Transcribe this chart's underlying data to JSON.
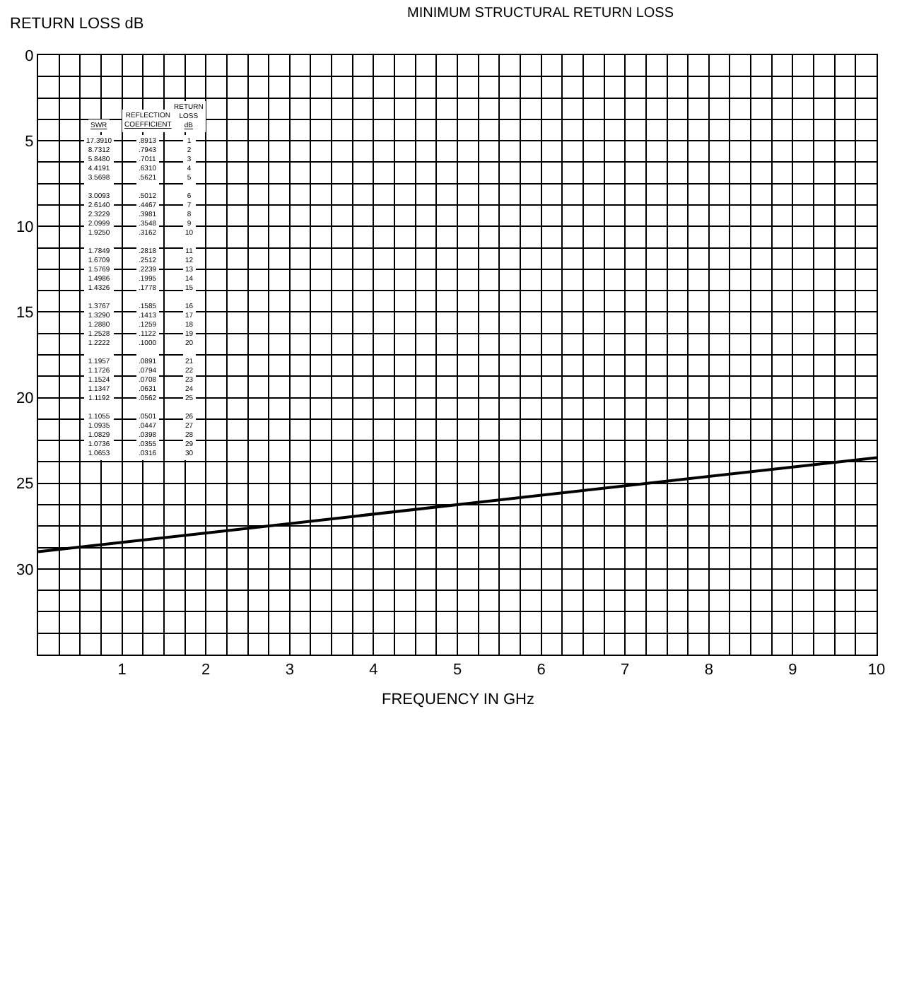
{
  "chart_data": {
    "type": "line",
    "title": "MINIMUM STRUCTURAL RETURN LOSS",
    "xlabel": "FREQUENCY IN GHz",
    "ylabel": "RETURN LOSS dB",
    "x": [
      0,
      10
    ],
    "series": [
      {
        "color": "#000000",
        "values": [
          29.0,
          23.5
        ]
      }
    ],
    "xlim": [
      0,
      10
    ],
    "xticks": [
      1,
      2,
      3,
      4,
      5,
      6,
      7,
      8,
      9,
      10
    ],
    "ylim": [
      35,
      0
    ],
    "yticks": [
      0,
      5,
      10,
      15,
      20,
      25,
      30
    ],
    "grid": true,
    "marker": "none",
    "line_style": "solid",
    "annotations": [
      "SWR",
      "REFLECTION\nCOEFFICIENT",
      "RETURN\nLOSS\ndB",
      "17.3910\n8.7312\n5.8480\n4.4191\n3.5698\n\n3.0093\n2.6140\n2.3229\n2.0999\n1.9250\n\n1.7849\n1.6709\n1.5769\n1.4986\n1.4326\n\n1.3767\n1.3290\n1.2880\n1.2528\n1.2222\n\n1.1957\n1.1726\n1.1524\n1.1347\n1.1192\n\n1.1055\n1.0935\n1.0829\n1.0736\n1.0653",
      ".8913\n.7943\n.7011\n.6310\n.5621\n\n.5012\n.4467\n.3981\n.3548\n.3162\n\n.2818\n.2512\n.2239\n.1995\n.1778\n\n.1585\n.1413\n.1259\n.1122\n.1000\n\n.0891\n.0794\n.0708\n.0631\n.0562\n\n.0501\n.0447\n.0398\n.0355\n.0316",
      "1\n2\n3\n4\n5\n\n6\n7\n8\n9\n10\n\n11\n12\n13\n14\n15\n\n16\n17\n18\n19\n20\n\n21\n22\n23\n24\n25\n\n26\n27\n28\n29\n30"
    ]
  }
}
